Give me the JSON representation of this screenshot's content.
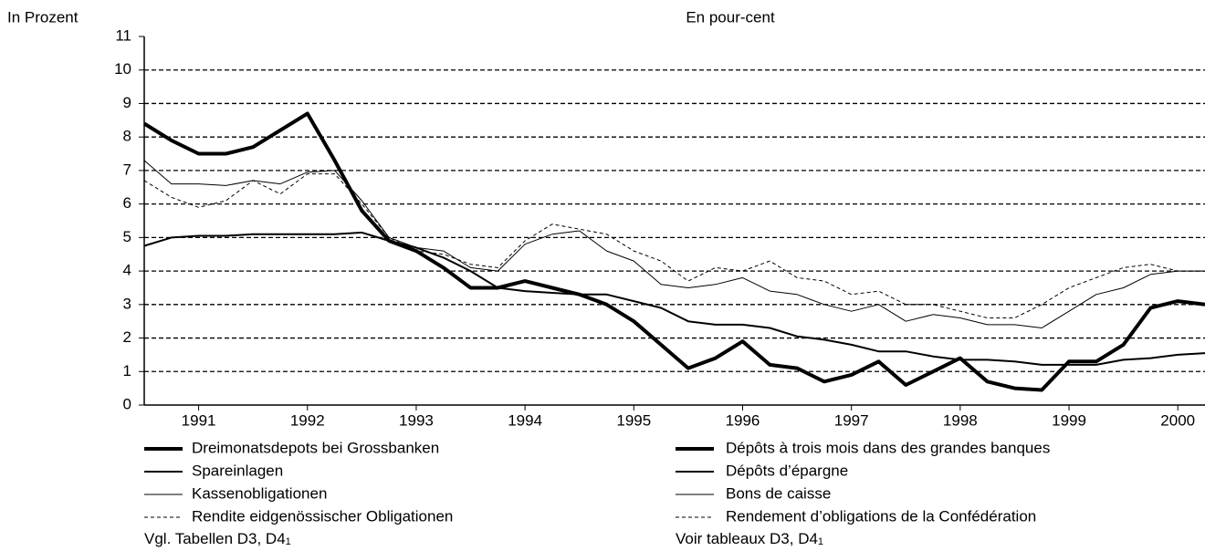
{
  "chart_data": {
    "type": "line",
    "ylabel": "In Prozent",
    "ylabel_fr": "En pour-cent",
    "x": [
      1991,
      1991.25,
      1991.5,
      1991.75,
      1992,
      1992.25,
      1992.5,
      1992.75,
      1993,
      1993.25,
      1993.5,
      1993.75,
      1994,
      1994.25,
      1994.5,
      1994.75,
      1995,
      1995.25,
      1995.5,
      1995.75,
      1996,
      1996.25,
      1996.5,
      1996.75,
      1997,
      1997.25,
      1997.5,
      1997.75,
      1998,
      1998.25,
      1998.5,
      1998.75,
      1999,
      1999.25,
      1999.5,
      1999.75,
      2000,
      2000.25,
      2000.5,
      2000.75
    ],
    "xlim": [
      1991,
      2000.75
    ],
    "xticks": [
      {
        "value": 1991.5,
        "label": "1991"
      },
      {
        "value": 1992.5,
        "label": "1992"
      },
      {
        "value": 1993.5,
        "label": "1993"
      },
      {
        "value": 1994.5,
        "label": "1994"
      },
      {
        "value": 1995.5,
        "label": "1995"
      },
      {
        "value": 1996.5,
        "label": "1996"
      },
      {
        "value": 1997.5,
        "label": "1997"
      },
      {
        "value": 1998.5,
        "label": "1998"
      },
      {
        "value": 1999.5,
        "label": "1999"
      },
      {
        "value": 2000.5,
        "label": "2000"
      }
    ],
    "ylim": [
      0,
      11
    ],
    "yticks": [
      0,
      1,
      2,
      3,
      4,
      5,
      6,
      7,
      8,
      9,
      10,
      11
    ],
    "grid": true,
    "series": [
      {
        "name": "Dreimonatsdepots bei Grossbanken",
        "name_fr": "Dépôts à trois mois dans des grandes banques",
        "color": "#000000",
        "width": 4,
        "dash": "none",
        "values": [
          8.4,
          7.9,
          7.5,
          7.5,
          7.7,
          8.2,
          8.7,
          7.3,
          5.8,
          4.9,
          4.6,
          4.1,
          3.5,
          3.5,
          3.7,
          3.5,
          3.3,
          3.0,
          2.5,
          1.8,
          1.1,
          1.4,
          1.9,
          1.2,
          1.1,
          0.7,
          0.9,
          1.3,
          0.6,
          1.0,
          1.4,
          0.7,
          0.5,
          0.45,
          1.3,
          1.3,
          1.8,
          2.9,
          3.1,
          3.0
        ]
      },
      {
        "name": "Spareinlagen",
        "name_fr": "Dépôts d’épargne",
        "color": "#000000",
        "width": 2,
        "dash": "none",
        "values": [
          4.75,
          5.0,
          5.05,
          5.05,
          5.1,
          5.1,
          5.1,
          5.1,
          5.15,
          4.9,
          4.7,
          4.4,
          4.0,
          3.5,
          3.4,
          3.35,
          3.3,
          3.3,
          3.1,
          2.9,
          2.5,
          2.4,
          2.4,
          2.3,
          2.05,
          1.95,
          1.8,
          1.6,
          1.6,
          1.45,
          1.35,
          1.35,
          1.3,
          1.2,
          1.2,
          1.2,
          1.35,
          1.4,
          1.5,
          1.55
        ]
      },
      {
        "name": "Kassenobligationen",
        "name_fr": "Bons de caisse",
        "color": "#000000",
        "width": 1,
        "dash": "none",
        "values": [
          7.3,
          6.6,
          6.6,
          6.55,
          6.7,
          6.6,
          6.95,
          7.0,
          6.1,
          5.0,
          4.7,
          4.6,
          4.1,
          4.0,
          4.8,
          5.1,
          5.2,
          4.6,
          4.3,
          3.6,
          3.5,
          3.6,
          3.8,
          3.4,
          3.3,
          3.0,
          2.8,
          3.0,
          2.5,
          2.7,
          2.6,
          2.4,
          2.4,
          2.3,
          2.8,
          3.3,
          3.5,
          3.9,
          4.0,
          4.0
        ]
      },
      {
        "name": "Rendite eidgenössischer Obligationen",
        "name_fr": "Rendement d’obligations de la Confédération",
        "color": "#000000",
        "width": 1,
        "dash": "4 3",
        "values": [
          6.7,
          6.2,
          5.9,
          6.1,
          6.7,
          6.3,
          6.9,
          6.9,
          6.0,
          5.0,
          4.6,
          4.5,
          4.2,
          4.1,
          4.9,
          5.4,
          5.25,
          5.1,
          4.6,
          4.3,
          3.7,
          4.1,
          4.0,
          4.3,
          3.8,
          3.7,
          3.3,
          3.4,
          3.0,
          3.0,
          2.8,
          2.6,
          2.6,
          3.0,
          3.5,
          3.8,
          4.1,
          4.2,
          4.0,
          4.0
        ]
      }
    ],
    "note": "Vgl. Tabellen D3, D4",
    "note_fr": "Voir tableaux D3, D4",
    "note_mark": "1"
  }
}
